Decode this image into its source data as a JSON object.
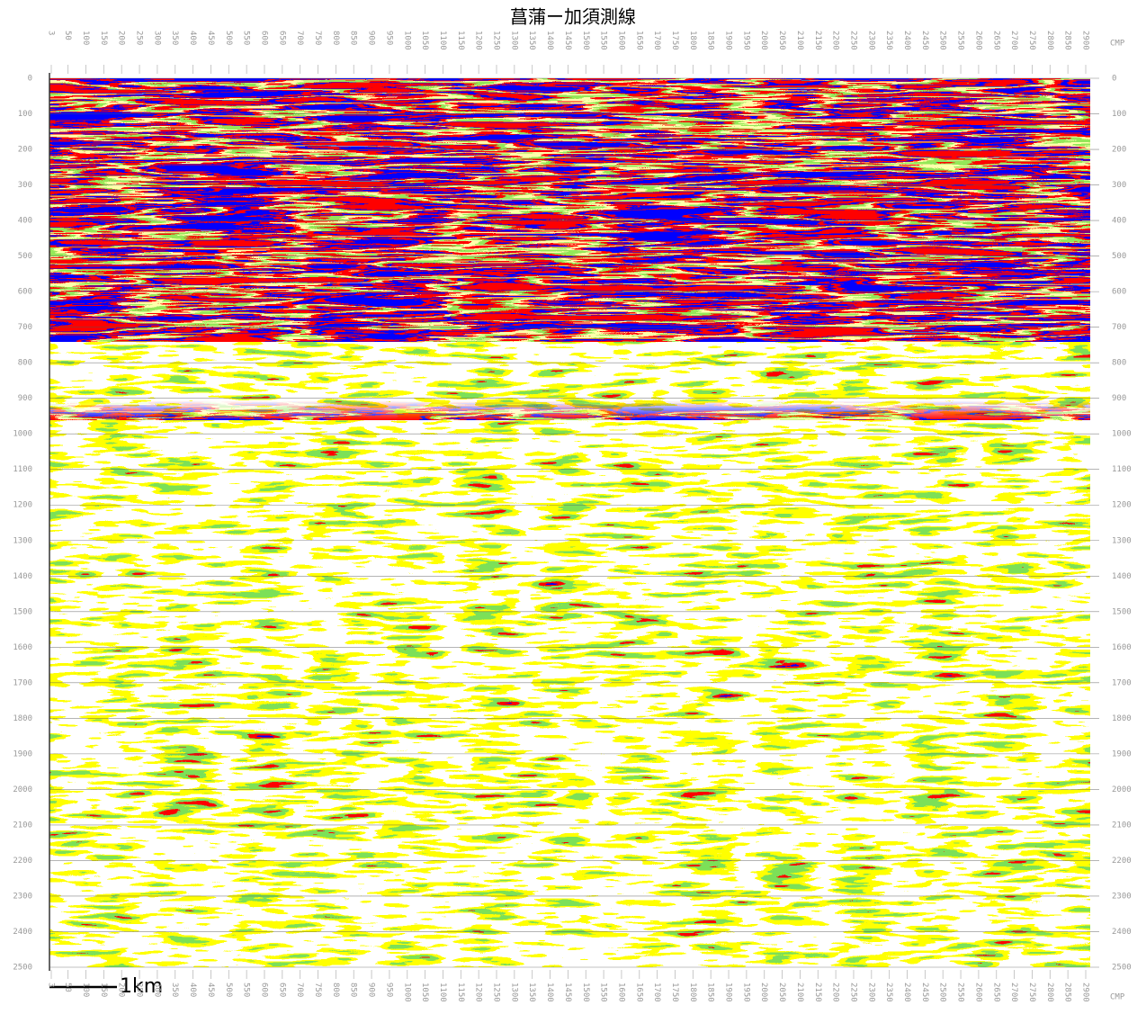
{
  "chart_data": {
    "type": "seismic",
    "title": "菖蒲ー加須測線",
    "x_label": "CMP",
    "scale_bar": "1km",
    "xlim": [
      3,
      2900
    ],
    "xticks": [
      3,
      50,
      100,
      150,
      200,
      250,
      300,
      350,
      400,
      450,
      500,
      550,
      600,
      650,
      700,
      750,
      800,
      850,
      900,
      950,
      1000,
      1050,
      1100,
      1150,
      1200,
      1250,
      1300,
      1350,
      1400,
      1450,
      1500,
      1550,
      1600,
      1650,
      1700,
      1750,
      1800,
      1850,
      1900,
      1950,
      2000,
      2050,
      2100,
      2150,
      2200,
      2250,
      2300,
      2350,
      2400,
      2450,
      2500,
      2550,
      2600,
      2650,
      2700,
      2750,
      2800,
      2850,
      2900
    ],
    "ylim": [
      0,
      2500
    ],
    "yticks": [
      0,
      100,
      200,
      300,
      400,
      500,
      600,
      700,
      800,
      900,
      1000,
      1100,
      1200,
      1300,
      1400,
      1500,
      1600,
      1700,
      1800,
      1900,
      2000,
      2100,
      2200,
      2300,
      2400,
      2500
    ],
    "grid": true
  }
}
